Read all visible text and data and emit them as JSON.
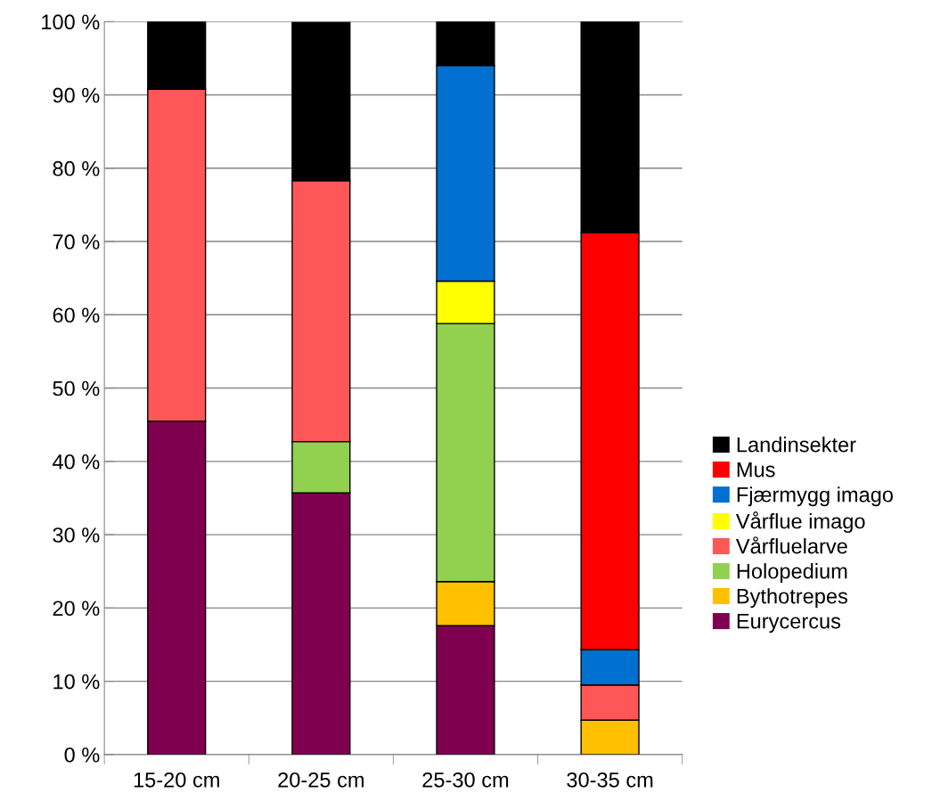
{
  "chart_data": {
    "type": "bar",
    "stacked": true,
    "categories": [
      "15-20 cm",
      "20-25 cm",
      "25-30 cm",
      "30-35 cm"
    ],
    "series": [
      {
        "name": "Eurycercus",
        "color": "#800050",
        "values": [
          45.5,
          35.7,
          17.6,
          0
        ]
      },
      {
        "name": "Bythotrepes",
        "color": "#ffc000",
        "values": [
          0,
          0,
          6.0,
          4.7
        ]
      },
      {
        "name": "Holopedium",
        "color": "#92d050",
        "values": [
          0,
          7.0,
          35.2,
          0
        ]
      },
      {
        "name": "Vårfluelarve",
        "color": "#ff5757",
        "values": [
          45.3,
          35.6,
          0,
          4.8
        ]
      },
      {
        "name": "Vårflue imago",
        "color": "#ffff00",
        "values": [
          0,
          0,
          5.8,
          0
        ]
      },
      {
        "name": "Fjærmygg imago",
        "color": "#0070d0",
        "values": [
          0,
          0,
          29.4,
          4.8
        ]
      },
      {
        "name": "Mus",
        "color": "#ff0000",
        "values": [
          0,
          0,
          0,
          56.9
        ]
      },
      {
        "name": "Landinsekter",
        "color": "#000000",
        "values": [
          9.2,
          21.6,
          6.0,
          28.8
        ]
      }
    ],
    "ylim": [
      0,
      100
    ],
    "yticks": [
      {
        "value": 0,
        "label": "0 %"
      },
      {
        "value": 10,
        "label": "10 %"
      },
      {
        "value": 20,
        "label": "20 %"
      },
      {
        "value": 30,
        "label": "30 %"
      },
      {
        "value": 40,
        "label": "40 %"
      },
      {
        "value": 50,
        "label": "50 %"
      },
      {
        "value": 60,
        "label": "60 %"
      },
      {
        "value": 70,
        "label": "70 %"
      },
      {
        "value": 80,
        "label": "80 %"
      },
      {
        "value": 90,
        "label": "90 %"
      },
      {
        "value": 100,
        "label": "100 %"
      }
    ],
    "grid": "y",
    "legend": "right"
  }
}
